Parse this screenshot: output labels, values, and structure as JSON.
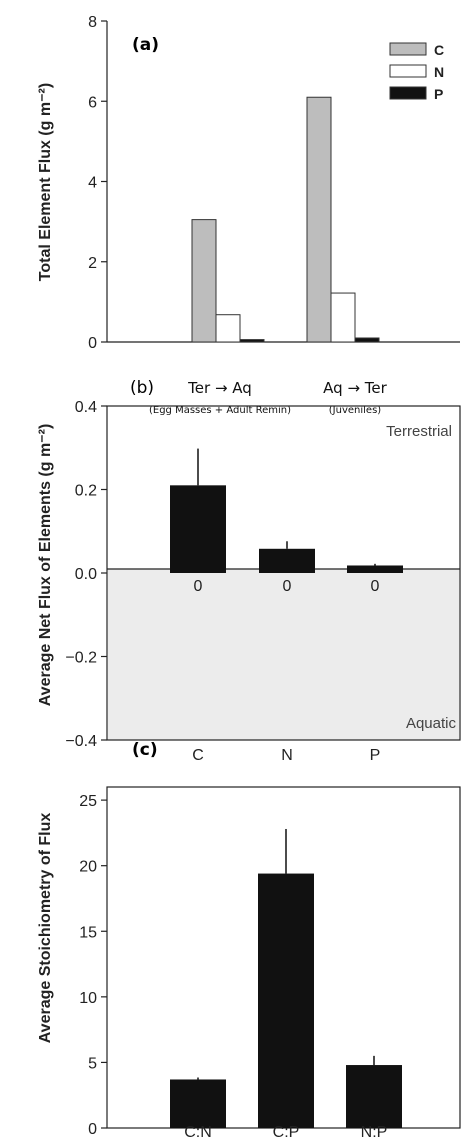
{
  "chart_data": [
    {
      "type": "bar",
      "panel_label": "(a)",
      "ylabel": "Total Element Flux (g m⁻²)",
      "ylim": [
        0,
        8
      ],
      "yticks": [
        "0",
        "2",
        "4",
        "6",
        "8"
      ],
      "categories": [
        "Ter → Aq",
        "Aq → Ter"
      ],
      "category_sublabels": [
        "(Egg Masses + Adult Remin)",
        "(Juveniles)"
      ],
      "legend_position": "top-right",
      "series": [
        {
          "name": "C",
          "color": "#bdbdbd",
          "values": [
            3.05,
            6.1
          ]
        },
        {
          "name": "N",
          "color": "#ffffff",
          "values": [
            0.68,
            1.22
          ]
        },
        {
          "name": "P",
          "color": "#111111",
          "values": [
            0.06,
            0.1
          ]
        }
      ]
    },
    {
      "type": "bar",
      "panel_label": "(b)",
      "ylabel": "Average Net Flux of Elements (g m⁻²)",
      "ylim": [
        -0.4,
        0.4
      ],
      "yticks": [
        "−0.4",
        "−0.2",
        "0.0",
        "0.2",
        "0.4"
      ],
      "categories": [
        "C",
        "N",
        "P"
      ],
      "values": [
        0.21,
        0.058,
        0.018
      ],
      "errors": [
        0.088,
        0.018,
        0.004
      ],
      "value_labels": [
        "0",
        "0",
        "0"
      ],
      "region_labels": {
        "top": "Terrestrial",
        "bottom": "Aquatic"
      },
      "negative_region_color": "#ececec",
      "bar_color": "#111111"
    },
    {
      "type": "bar",
      "panel_label": "(c)",
      "ylabel": "Average Stoichiometry of Flux",
      "ylim": [
        0,
        26
      ],
      "yticks": [
        "0",
        "5",
        "10",
        "15",
        "20",
        "25"
      ],
      "categories": [
        "C:N",
        "C:P",
        "N:P"
      ],
      "values": [
        3.7,
        19.4,
        4.8
      ],
      "errors": [
        0.15,
        3.4,
        0.7
      ],
      "bar_color": "#111111"
    }
  ]
}
